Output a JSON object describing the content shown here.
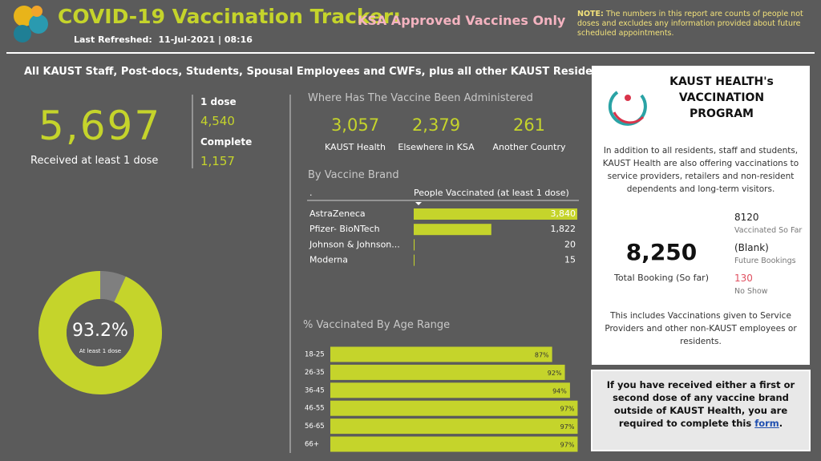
{
  "header": {
    "title": "COVID-19 Vaccination Tracker:",
    "subtitle": "KSA Approved Vaccines Only",
    "refreshed": "Last Refreshed:  11-Jul-2021 | 08:16",
    "note_label": "NOTE:",
    "note": "The numbers in this report are counts of people not doses and excludes any information provided about future scheduled appointments."
  },
  "banner": "All KAUST Staff, Post-docs, Students, Spousal Employees and CWFs, plus all other KAUST Residents",
  "summary": {
    "total": "5,697",
    "total_label": "Received at least 1 dose",
    "dose1_label": "1 dose",
    "dose1": "4,540",
    "complete_label": "Complete",
    "complete": "1,157"
  },
  "donut": {
    "value": 93.2,
    "value_label": "93.2%",
    "label": "At least 1 dose",
    "color": "#c5d42b",
    "rest_color": "#7f7f7f"
  },
  "locations": {
    "title": "Where Has The Vaccine Been Administered",
    "items": [
      {
        "value": "3,057",
        "label": "KAUST Health"
      },
      {
        "value": "2,379",
        "label": "Elsewhere in KSA"
      },
      {
        "value": "261",
        "label": "Another Country"
      }
    ]
  },
  "brands": {
    "title": "By Vaccine Brand",
    "column_header": ".",
    "value_header": "People Vaccinated (at least 1 dose)",
    "categories": [
      "AstraZeneca",
      "Pfizer- BioNTech",
      "Johnson & Johnson...",
      "Moderna"
    ],
    "values": [
      3840,
      1822,
      20,
      15
    ],
    "value_labels": [
      "3,840",
      "1,822",
      "20",
      "15"
    ],
    "xlim": [
      0,
      3840
    ],
    "color": "#c5d42b"
  },
  "age": {
    "title": "% Vaccinated By Age Range",
    "categories": [
      "18-25",
      "26-35",
      "36-45",
      "46-55",
      "56-65",
      "66+"
    ],
    "values": [
      87,
      92,
      94,
      97,
      97,
      97
    ],
    "value_labels": [
      "87%",
      "92%",
      "94%",
      "97%",
      "97%",
      "97%"
    ],
    "xlim": [
      0,
      100
    ],
    "color": "#c5d42b"
  },
  "program": {
    "title_lines": [
      "KAUST HEALTH's",
      "VACCINATION",
      "PROGRAM"
    ],
    "description": "In addition to all residents, staff and students, KAUST Health are also offering vaccinations to service providers, retailers and non-resident dependents and long-term visitors.",
    "total": "8,250",
    "total_label": "Total Booking (So far)",
    "stats": [
      {
        "value": "8120",
        "label": "Vaccinated So Far"
      },
      {
        "value": "(Blank)",
        "label": "Future Bookings"
      },
      {
        "value": "130",
        "label": "No Show"
      }
    ],
    "footer": "This includes Vaccinations given to Service Providers and other non-KAUST employees or residents."
  },
  "notice": {
    "text": "If you have received either a first or second dose of any vaccine brand outside of KAUST Health, you are required to complete this",
    "link": "form",
    "end": "."
  }
}
